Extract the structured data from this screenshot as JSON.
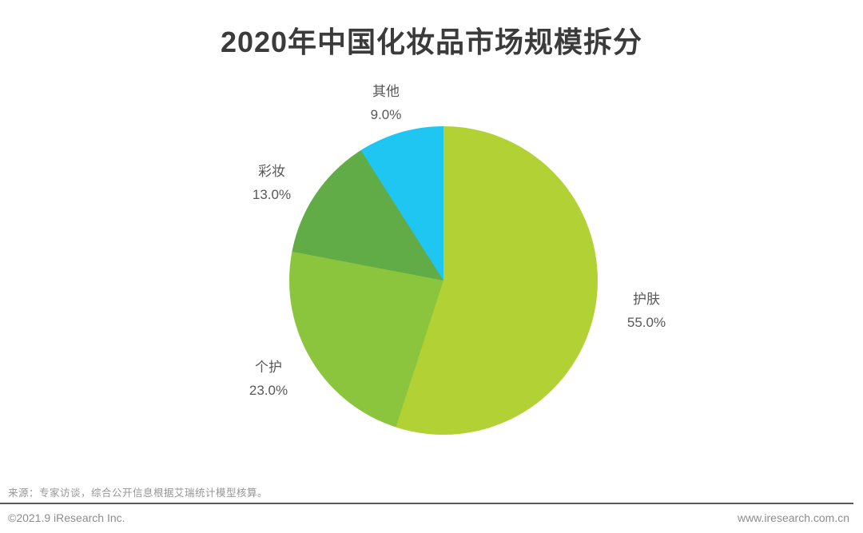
{
  "title": "2020年中国化妆品市场规模拆分",
  "chart_data": {
    "type": "pie",
    "title": "2020年中国化妆品市场规模拆分",
    "start_angle_deg": 0,
    "direction": "clockwise",
    "legend_position": "none",
    "categories": [
      "护肤",
      "个护",
      "彩妆",
      "其他"
    ],
    "values": [
      55.0,
      23.0,
      13.0,
      9.0
    ],
    "segments": [
      {
        "label": "护肤",
        "value": 55.0,
        "display": "55.0%",
        "color": "#b1d135"
      },
      {
        "label": "个护",
        "value": 23.0,
        "display": "23.0%",
        "color": "#8bc53e"
      },
      {
        "label": "彩妆",
        "value": 13.0,
        "display": "13.0%",
        "color": "#61ac47"
      },
      {
        "label": "其他",
        "value": 9.0,
        "display": "9.0%",
        "color": "#1fc6f2"
      }
    ]
  },
  "footer": {
    "source": "来源：专家访谈，综合公开信息根据艾瑞统计模型核算。",
    "copyright": "©2021.9 iResearch Inc.",
    "website": "www.iresearch.com.cn"
  },
  "colors": {
    "title_text": "#3b3b3b",
    "label_text": "#595757",
    "footer_text": "#8c8c8c",
    "rule": "#595959",
    "background": "#ffffff"
  }
}
